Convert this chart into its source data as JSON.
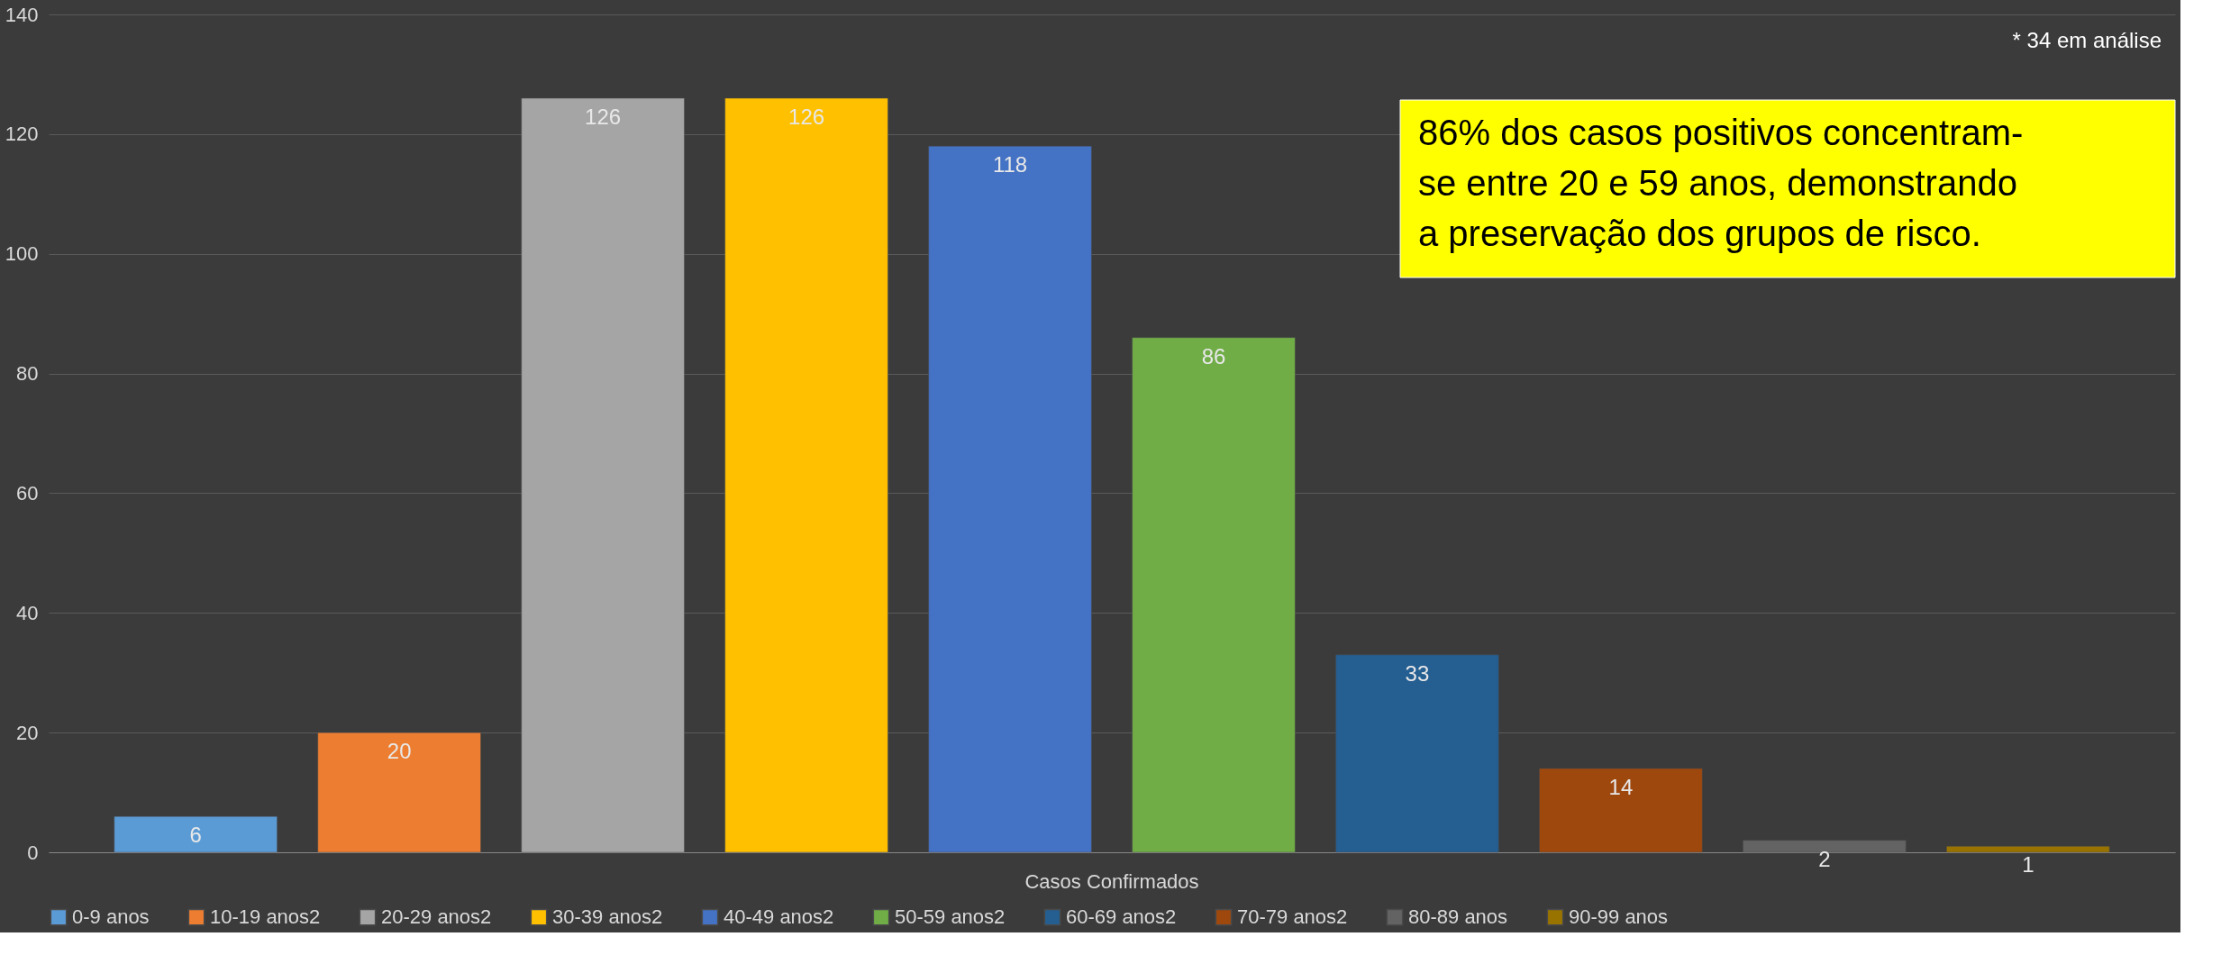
{
  "chart_data": {
    "type": "bar",
    "categories": [
      "Casos Confirmados"
    ],
    "series": [
      {
        "name": "0-9 anos",
        "color": "#5b9bd5",
        "values": [
          6
        ]
      },
      {
        "name": "10-19 anos2",
        "color": "#ed7d31",
        "values": [
          20
        ]
      },
      {
        "name": "20-29 anos2",
        "color": "#a5a5a5",
        "values": [
          126
        ]
      },
      {
        "name": "30-39 anos2",
        "color": "#ffc000",
        "values": [
          126
        ]
      },
      {
        "name": "40-49 anos2",
        "color": "#4472c4",
        "values": [
          118
        ]
      },
      {
        "name": "50-59 anos2",
        "color": "#70ad47",
        "values": [
          86
        ]
      },
      {
        "name": "60-69 anos2",
        "color": "#255e91",
        "values": [
          33
        ]
      },
      {
        "name": "70-79 anos2",
        "color": "#9e480e",
        "values": [
          14
        ]
      },
      {
        "name": "80-89 anos",
        "color": "#636363",
        "values": [
          2
        ]
      },
      {
        "name": "90-99 anos",
        "color": "#997300",
        "values": [
          1
        ]
      }
    ],
    "ylim": [
      0,
      140
    ],
    "yticks": [
      0,
      20,
      40,
      60,
      80,
      100,
      120,
      140
    ],
    "grid": "y",
    "legend": "bottom",
    "data_labels": true,
    "annotations": [
      "* 34 em análise",
      "86% dos casos positivos concentram-se entre 20 e 59 anos, demonstrando a preservação dos grupos de risco."
    ]
  }
}
